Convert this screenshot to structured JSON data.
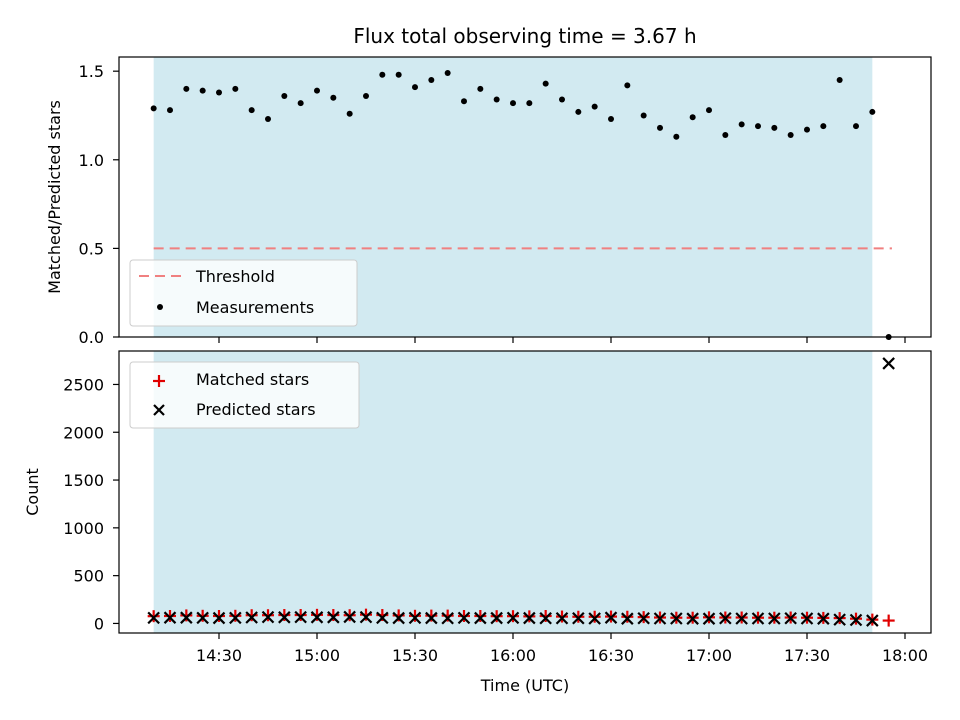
{
  "chart_data": [
    {
      "type": "scatter",
      "title": "Flux total observing time = 3.67 h",
      "xlabel": "",
      "ylabel": "Matched/Predicted stars",
      "ylim": [
        0,
        1.58
      ],
      "yticks": [
        0.0,
        0.5,
        1.0,
        1.5
      ],
      "ytick_labels": [
        "0.0",
        "0.5",
        "1.0",
        "1.5"
      ],
      "x_ticks_labeled": false,
      "observing_window": {
        "start": "14:10",
        "end": "17:50",
        "color": "#add8e6"
      },
      "threshold": {
        "label": "Threshold",
        "value": 0.5,
        "x_start": "14:10",
        "x_end": "17:56",
        "color": "#f08080"
      },
      "legend": {
        "position": "lower-left",
        "entries": [
          "Threshold",
          "Measurements"
        ]
      },
      "series": [
        {
          "name": "Measurements",
          "color": "#000000",
          "x": [
            "14:10",
            "14:15",
            "14:20",
            "14:25",
            "14:30",
            "14:35",
            "14:40",
            "14:45",
            "14:50",
            "14:55",
            "15:00",
            "15:05",
            "15:10",
            "15:15",
            "15:20",
            "15:25",
            "15:30",
            "15:35",
            "15:40",
            "15:45",
            "15:50",
            "15:55",
            "16:00",
            "16:05",
            "16:10",
            "16:15",
            "16:20",
            "16:25",
            "16:30",
            "16:35",
            "16:40",
            "16:45",
            "16:50",
            "16:55",
            "17:00",
            "17:05",
            "17:10",
            "17:15",
            "17:20",
            "17:25",
            "17:30",
            "17:35",
            "17:40",
            "17:45",
            "17:50",
            "17:55"
          ],
          "y": [
            1.29,
            1.28,
            1.4,
            1.39,
            1.38,
            1.4,
            1.28,
            1.23,
            1.36,
            1.32,
            1.39,
            1.35,
            1.26,
            1.36,
            1.48,
            1.48,
            1.41,
            1.45,
            1.49,
            1.33,
            1.4,
            1.34,
            1.32,
            1.32,
            1.43,
            1.34,
            1.27,
            1.3,
            1.23,
            1.42,
            1.25,
            1.18,
            1.13,
            1.24,
            1.28,
            1.14,
            1.2,
            1.19,
            1.18,
            1.14,
            1.17,
            1.19,
            1.45,
            1.19,
            1.27,
            0.0
          ]
        }
      ]
    },
    {
      "type": "scatter",
      "xlabel": "Time (UTC)",
      "ylabel": "Count",
      "ylim": [
        -100,
        2850
      ],
      "yticks": [
        0,
        500,
        1000,
        1500,
        2000,
        2500
      ],
      "ytick_labels": [
        "0",
        "500",
        "1000",
        "1500",
        "2000",
        "2500"
      ],
      "xticks": [
        "14:30",
        "15:00",
        "15:30",
        "16:00",
        "16:30",
        "17:00",
        "17:30",
        "18:00"
      ],
      "xtick_labels": [
        "14:30",
        "15:00",
        "15:30",
        "16:00",
        "16:30",
        "17:00",
        "17:30",
        "18:00"
      ],
      "observing_window": {
        "start": "14:10",
        "end": "17:50",
        "color": "#add8e6"
      },
      "legend": {
        "position": "upper-left",
        "entries": [
          "Matched stars",
          "Predicted stars"
        ]
      },
      "series": [
        {
          "name": "Matched stars",
          "marker": "plus",
          "color": "#e00000",
          "x": [
            "14:10",
            "14:15",
            "14:20",
            "14:25",
            "14:30",
            "14:35",
            "14:40",
            "14:45",
            "14:50",
            "14:55",
            "15:00",
            "15:05",
            "15:10",
            "15:15",
            "15:20",
            "15:25",
            "15:30",
            "15:35",
            "15:40",
            "15:45",
            "15:50",
            "15:55",
            "16:00",
            "16:05",
            "16:10",
            "16:15",
            "16:20",
            "16:25",
            "16:30",
            "16:35",
            "16:40",
            "16:45",
            "16:50",
            "16:55",
            "17:00",
            "17:05",
            "17:10",
            "17:15",
            "17:20",
            "17:25",
            "17:30",
            "17:35",
            "17:40",
            "17:45",
            "17:50",
            "17:55"
          ],
          "y": [
            76,
            78,
            84,
            80,
            78,
            80,
            86,
            86,
            88,
            88,
            90,
            88,
            86,
            92,
            88,
            84,
            80,
            82,
            82,
            78,
            78,
            76,
            76,
            74,
            78,
            72,
            70,
            70,
            72,
            70,
            66,
            62,
            60,
            60,
            64,
            62,
            62,
            60,
            60,
            62,
            60,
            58,
            56,
            50,
            40,
            30
          ]
        },
        {
          "name": "Predicted stars",
          "marker": "x",
          "color": "#000000",
          "x": [
            "14:10",
            "14:15",
            "14:20",
            "14:25",
            "14:30",
            "14:35",
            "14:40",
            "14:45",
            "14:50",
            "14:55",
            "15:00",
            "15:05",
            "15:10",
            "15:15",
            "15:20",
            "15:25",
            "15:30",
            "15:35",
            "15:40",
            "15:45",
            "15:50",
            "15:55",
            "16:00",
            "16:05",
            "16:10",
            "16:15",
            "16:20",
            "16:25",
            "16:30",
            "16:35",
            "16:40",
            "16:45",
            "16:50",
            "16:55",
            "17:00",
            "17:05",
            "17:10",
            "17:15",
            "17:20",
            "17:25",
            "17:30",
            "17:35",
            "17:40",
            "17:45",
            "17:50",
            "17:55"
          ],
          "y": [
            58,
            60,
            60,
            58,
            56,
            58,
            62,
            66,
            64,
            66,
            64,
            64,
            68,
            66,
            58,
            56,
            58,
            56,
            54,
            58,
            56,
            56,
            58,
            56,
            54,
            54,
            54,
            52,
            60,
            50,
            54,
            52,
            52,
            50,
            50,
            54,
            52,
            52,
            52,
            54,
            52,
            50,
            40,
            36,
            30,
            2720
          ]
        }
      ]
    }
  ]
}
